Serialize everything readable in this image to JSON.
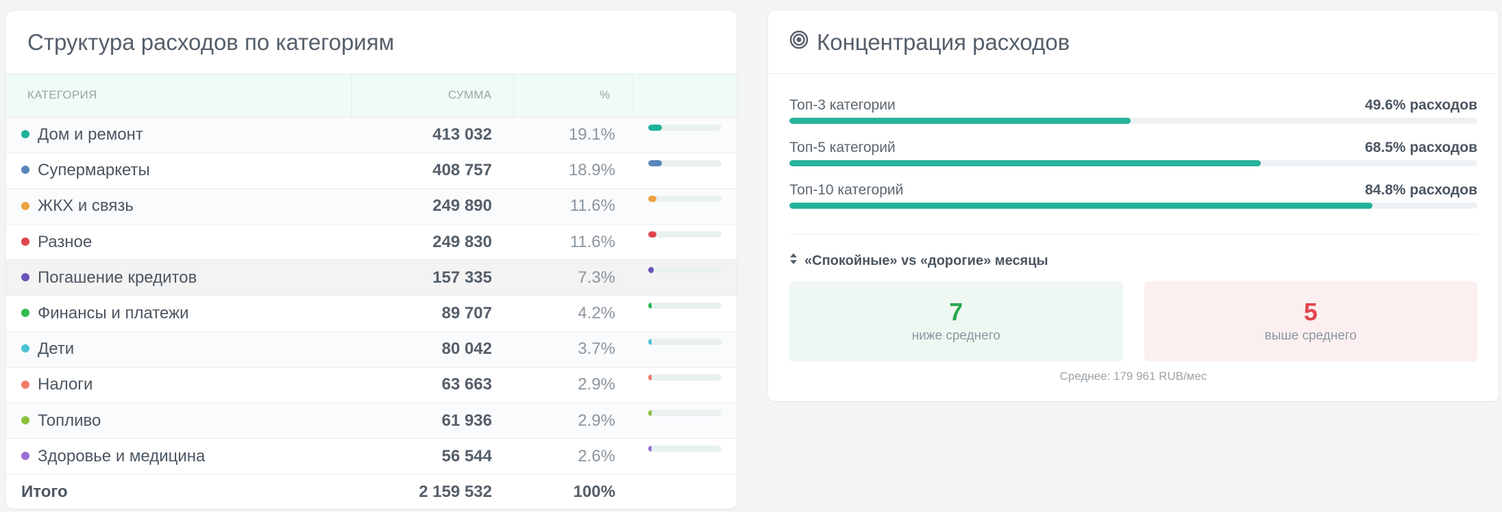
{
  "structure": {
    "title": "Структура расходов по категориям",
    "headers": {
      "category": "КАТЕГОРИЯ",
      "sum": "СУММА",
      "pct": "%"
    },
    "rows": [
      {
        "name": "Дом и ремонт",
        "sum": "413 032",
        "pct": "19.1%",
        "share": 0.191,
        "color": "#1fb29a"
      },
      {
        "name": "Супермаркеты",
        "sum": "408 757",
        "pct": "18.9%",
        "share": 0.189,
        "color": "#5a86b8"
      },
      {
        "name": "ЖКХ и связь",
        "sum": "249 890",
        "pct": "11.6%",
        "share": 0.116,
        "color": "#eea13f"
      },
      {
        "name": "Разное",
        "sum": "249 830",
        "pct": "11.6%",
        "share": 0.116,
        "color": "#e0454d"
      },
      {
        "name": "Погашение кредитов",
        "sum": "157 335",
        "pct": "7.3%",
        "share": 0.073,
        "color": "#6a53b8"
      },
      {
        "name": "Финансы и платежи",
        "sum": "89 707",
        "pct": "4.2%",
        "share": 0.042,
        "color": "#2fb950"
      },
      {
        "name": "Дети",
        "sum": "80 042",
        "pct": "3.7%",
        "share": 0.037,
        "color": "#4bc4d8"
      },
      {
        "name": "Налоги",
        "sum": "63 663",
        "pct": "2.9%",
        "share": 0.029,
        "color": "#f07b6b"
      },
      {
        "name": "Топливо",
        "sum": "61 936",
        "pct": "2.9%",
        "share": 0.029,
        "color": "#8cc13f"
      },
      {
        "name": "Здоровье и медицина",
        "sum": "56 544",
        "pct": "2.6%",
        "share": 0.026,
        "color": "#9a6fd3"
      }
    ],
    "total": {
      "label": "Итого",
      "sum": "2 159 532",
      "pct": "100%"
    }
  },
  "concentration": {
    "title": "Концентрация расходов",
    "icon": "target-icon",
    "items": [
      {
        "label": "Топ-3 категории",
        "value": "49.6% расходов",
        "share": 0.496
      },
      {
        "label": "Топ-5 категорий",
        "value": "68.5% расходов",
        "share": 0.685
      },
      {
        "label": "Топ-10 категорий",
        "value": "84.8% расходов",
        "share": 0.848
      }
    ],
    "months_title": "«Спокойные» vs «дорогие» месяцы",
    "low": {
      "count": "7",
      "caption": "ниже среднего"
    },
    "high": {
      "count": "5",
      "caption": "выше среднего"
    },
    "average_note": "Среднее: 179 961 RUB/мес",
    "accent": "#26b39a"
  }
}
